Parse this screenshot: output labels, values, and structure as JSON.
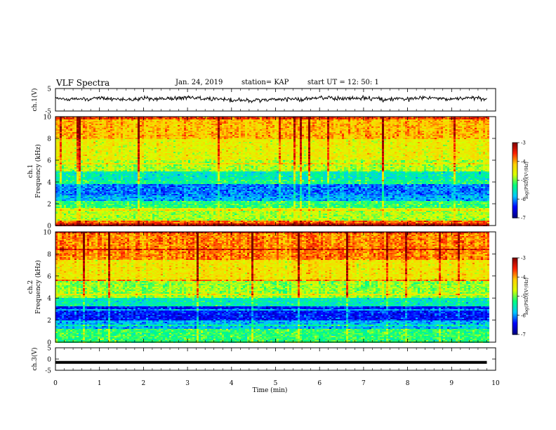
{
  "header": {
    "title": "VLF Spectra",
    "date": "Jan. 24, 2019",
    "station": "station= KAP",
    "start": "start  UT =   12: 50: 1"
  },
  "colors": {
    "colormap": [
      "#000080",
      "#0000ff",
      "#00c8ff",
      "#00ff80",
      "#d8ff00",
      "#ffd000",
      "#ff2000",
      "#800000"
    ],
    "trace": "#000000"
  },
  "chart_data": [
    {
      "type": "line",
      "name": "ch1-waveform",
      "ylabel": "ch.1(V)",
      "ylim": [
        -5,
        5
      ],
      "yticks": [
        "5",
        "-5"
      ],
      "x": [
        0,
        0.5,
        1,
        1.5,
        2,
        2.5,
        3,
        3.5,
        4,
        4.5,
        5,
        5.5,
        6,
        6.5,
        7,
        7.5,
        8,
        8.5,
        9,
        9.5,
        9.8
      ],
      "y": [
        0.5,
        0.2,
        0.8,
        0,
        0.5,
        0.3,
        1,
        0.6,
        0,
        -0.4,
        0.4,
        0.2,
        0.7,
        0.5,
        0.8,
        0.2,
        0.5,
        0.9,
        0.3,
        1,
        0.1
      ]
    },
    {
      "type": "heatmap",
      "name": "ch1-spectrogram",
      "ylabel": "ch.1",
      "ylabel2": "Frequency (kHz)",
      "ylim": [
        0,
        10
      ],
      "yticks": [
        "0",
        "2",
        "4",
        "6",
        "8",
        "10"
      ],
      "z_range": [
        -7,
        -3
      ],
      "bands": [
        {
          "f": [
            0,
            0.5
          ],
          "z": -3.8
        },
        {
          "f": [
            0.5,
            1.5
          ],
          "z": -4.8
        },
        {
          "f": [
            1.5,
            2.3
          ],
          "z": -5.2
        },
        {
          "f": [
            2.3,
            2.8
          ],
          "z": -5.9
        },
        {
          "f": [
            2.8,
            3.8
          ],
          "z": -6.1
        },
        {
          "f": [
            3.8,
            4.2
          ],
          "z": -5.3
        },
        {
          "f": [
            4.2,
            5.0
          ],
          "z": -5.5
        },
        {
          "f": [
            5.0,
            6.0
          ],
          "z": -4.8
        },
        {
          "f": [
            6.0,
            8.0
          ],
          "z": -4.5
        },
        {
          "f": [
            8.0,
            10.0
          ],
          "z": -4.1
        }
      ],
      "colorbar": {
        "label": "log(PSD)(V²/Hz)",
        "ticks": [
          "-3",
          "-4",
          "-5",
          "-6",
          "-7"
        ]
      }
    },
    {
      "type": "heatmap",
      "name": "ch2-spectrogram",
      "ylabel": "ch.2",
      "ylabel2": "Frequency (kHz)",
      "ylim": [
        0,
        10
      ],
      "yticks": [
        "0",
        "2",
        "4",
        "6",
        "8",
        "10"
      ],
      "z_range": [
        -7,
        -3
      ],
      "bands": [
        {
          "f": [
            0,
            1.2
          ],
          "z": -5.2
        },
        {
          "f": [
            1.2,
            2.0
          ],
          "z": -5.9
        },
        {
          "f": [
            2.0,
            3.2
          ],
          "z": -6.4
        },
        {
          "f": [
            3.2,
            4.0
          ],
          "z": -5.5
        },
        {
          "f": [
            4.0,
            5.5
          ],
          "z": -4.9
        },
        {
          "f": [
            5.5,
            7.5
          ],
          "z": -4.4
        },
        {
          "f": [
            7.5,
            10.0
          ],
          "z": -3.9
        }
      ],
      "colorbar": {
        "label": "log(PSD)(V²/Hz)",
        "ticks": [
          "-3",
          "-4",
          "-5",
          "-6",
          "-7"
        ]
      }
    },
    {
      "type": "line",
      "name": "ch3-waveform",
      "ylabel": "ch.3(V)",
      "ylim": [
        -5,
        5
      ],
      "yticks": [
        "5",
        "0",
        "-5"
      ],
      "x": [
        0,
        9.8
      ],
      "y": [
        -1.5,
        -1.5
      ]
    }
  ],
  "xaxis": {
    "label": "Time (min)",
    "range": [
      0,
      10
    ],
    "ticks": [
      "0",
      "1",
      "2",
      "3",
      "4",
      "5",
      "6",
      "7",
      "8",
      "9",
      "10"
    ]
  }
}
